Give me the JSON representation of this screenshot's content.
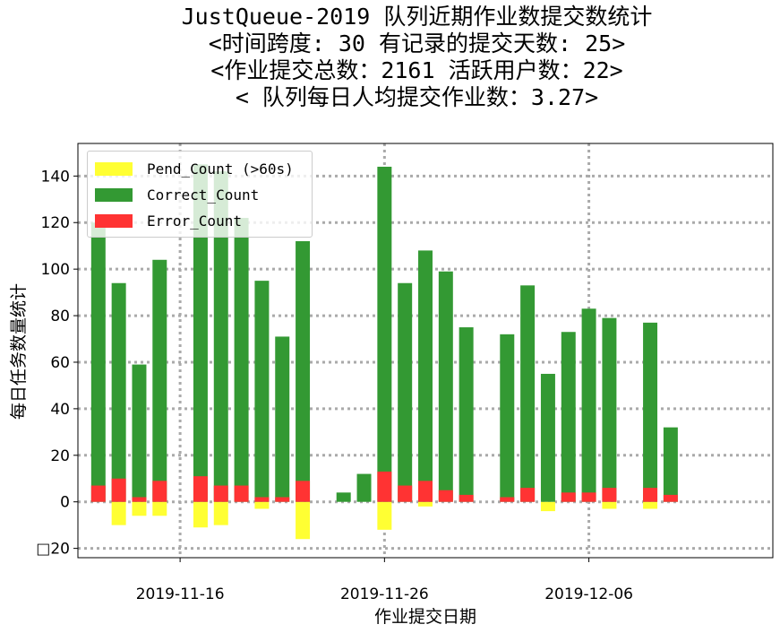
{
  "title_lines": [
    "JustQueue-2019 队列近期作业数提交数统计",
    "<时间跨度: 30  有记录的提交天数: 25>",
    "<作业提交总数：2161 活跃用户数：22>",
    "< 队列每日人均提交作业数：3.27>"
  ],
  "colors": {
    "pend": "#ffff33",
    "correct": "#339933",
    "error": "#ff3333",
    "grid": "#aaaaaa"
  },
  "chart_data": {
    "type": "bar",
    "stacked": true,
    "title": "JustQueue-2019 队列近期作业数提交数统计",
    "xlabel": "作业提交日期",
    "ylabel": "每日任务数量统计",
    "ylim": [
      -24,
      154
    ],
    "yticks": [
      -20,
      0,
      20,
      40,
      60,
      80,
      100,
      120,
      140
    ],
    "ytick_labels": [
      "□20",
      "0",
      "20",
      "40",
      "60",
      "80",
      "100",
      "120",
      "140"
    ],
    "xticks": [
      "2019-11-16",
      "2019-11-26",
      "2019-12-06"
    ],
    "xlim": [
      "2019-11-11",
      "2019-12-15"
    ],
    "grid": true,
    "legend_position": "top-left",
    "dates": [
      "2019-11-12",
      "2019-11-13",
      "2019-11-14",
      "2019-11-15",
      "2019-11-17",
      "2019-11-18",
      "2019-11-19",
      "2019-11-20",
      "2019-11-21",
      "2019-11-22",
      "2019-11-24",
      "2019-11-25",
      "2019-11-26",
      "2019-11-27",
      "2019-11-28",
      "2019-11-29",
      "2019-11-30",
      "2019-12-02",
      "2019-12-03",
      "2019-12-04",
      "2019-12-05",
      "2019-12-06",
      "2019-12-07",
      "2019-12-09",
      "2019-12-10",
      "2019-12-11"
    ],
    "series": [
      {
        "name": "Pend_Count (>60s)",
        "key": "pend",
        "values": [
          0,
          -10,
          -6,
          -6,
          -11,
          -10,
          0,
          -3,
          0,
          -16,
          0,
          0,
          -12,
          0,
          -2,
          0,
          0,
          0,
          0,
          -4,
          0,
          0,
          -3,
          -3,
          0,
          0
        ]
      },
      {
        "name": "Correct_Count",
        "key": "correct",
        "values": [
          120,
          94,
          59,
          104,
          145,
          142,
          122,
          95,
          71,
          112,
          4,
          12,
          144,
          94,
          108,
          99,
          75,
          72,
          93,
          55,
          73,
          83,
          79,
          77,
          32,
          0
        ]
      },
      {
        "name": "Error_Count",
        "key": "error",
        "values": [
          7,
          10,
          2,
          9,
          11,
          7,
          7,
          2,
          2,
          9,
          0,
          0,
          13,
          7,
          9,
          5,
          3,
          2,
          6,
          0,
          4,
          4,
          6,
          6,
          3,
          0
        ]
      }
    ]
  }
}
